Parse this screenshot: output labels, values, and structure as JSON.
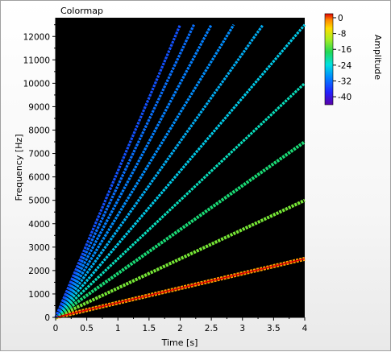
{
  "chart_data": {
    "type": "heatmap",
    "title": "Colormap",
    "xlabel": "Time [s]",
    "ylabel": "Frequency [Hz]",
    "xlim": [
      0,
      4
    ],
    "ylim": [
      0,
      12800
    ],
    "xticks": [
      "0",
      "0.5",
      "1",
      "1.5",
      "2",
      "2.5",
      "3",
      "3.5",
      "4"
    ],
    "yticks": [
      "0",
      "1000",
      "2000",
      "3000",
      "4000",
      "5000",
      "6000",
      "7000",
      "8000",
      "9000",
      "10000",
      "11000",
      "12000"
    ],
    "colorbar": {
      "label": "Amplitude",
      "range": [
        -42,
        0
      ],
      "ticks": [
        "0",
        "-8",
        "-16",
        "-24",
        "-32",
        "-40"
      ]
    },
    "series": [
      {
        "harmonic": 1,
        "end_time": 4,
        "end_frequency": 2500,
        "amplitude": -4
      },
      {
        "harmonic": 2,
        "end_time": 4,
        "end_frequency": 5000,
        "amplitude": -14
      },
      {
        "harmonic": 3,
        "end_time": 4,
        "end_frequency": 7500,
        "amplitude": -19
      },
      {
        "harmonic": 4,
        "end_time": 4,
        "end_frequency": 10000,
        "amplitude": -22
      },
      {
        "harmonic": 5,
        "end_time": 4,
        "end_frequency": 12500,
        "amplitude": -25
      },
      {
        "harmonic": 6,
        "end_time": 3.33,
        "end_frequency": 12500,
        "amplitude": -27
      },
      {
        "harmonic": 7,
        "end_time": 2.86,
        "end_frequency": 12500,
        "amplitude": -29
      },
      {
        "harmonic": 8,
        "end_time": 2.5,
        "end_frequency": 12500,
        "amplitude": -30
      },
      {
        "harmonic": 9,
        "end_time": 2.22,
        "end_frequency": 12500,
        "amplitude": -31
      },
      {
        "harmonic": 10,
        "end_time": 2.0,
        "end_frequency": 12500,
        "amplitude": -33
      }
    ],
    "grid": false,
    "background_color": "#000000"
  }
}
